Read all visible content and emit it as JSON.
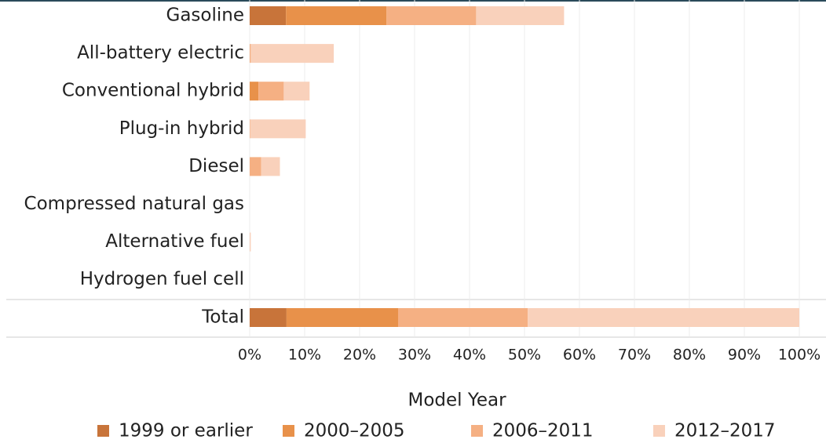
{
  "chart_data": {
    "type": "bar",
    "orientation": "horizontal",
    "stacked": true,
    "categories": [
      "Gasoline",
      "All-battery electric",
      "Conventional hybrid",
      "Plug-in hybrid",
      "Diesel",
      "Compressed natural gas",
      "Alternative fuel",
      "Hydrogen fuel cell",
      "Total"
    ],
    "series": [
      {
        "name": "1999 or earlier",
        "color": "#c8743a",
        "values": [
          6.6,
          0,
          0,
          0,
          0,
          0,
          0,
          0,
          6.7
        ]
      },
      {
        "name": "2000–2005",
        "color": "#e8914a",
        "values": [
          18.3,
          0,
          1.6,
          0,
          0,
          0,
          0,
          0,
          20.3
        ]
      },
      {
        "name": "2006–2011",
        "color": "#f5b083",
        "values": [
          16.3,
          0.2,
          4.6,
          0.1,
          2.1,
          0,
          0,
          0,
          23.6
        ]
      },
      {
        "name": "2012–2017",
        "color": "#f9d1bb",
        "values": [
          16.0,
          15.1,
          4.7,
          10.1,
          3.4,
          0,
          0.2,
          0,
          49.4
        ]
      }
    ],
    "xlim": [
      0,
      100
    ],
    "xticks": [
      {
        "value": 0,
        "label": "0%"
      },
      {
        "value": 10,
        "label": "10%"
      },
      {
        "value": 20,
        "label": "20%"
      },
      {
        "value": 30,
        "label": "30%"
      },
      {
        "value": 40,
        "label": "40%"
      },
      {
        "value": 50,
        "label": "50%"
      },
      {
        "value": 60,
        "label": "60%"
      },
      {
        "value": 70,
        "label": "70%"
      },
      {
        "value": 80,
        "label": "80%"
      },
      {
        "value": 90,
        "label": "90%"
      },
      {
        "value": 100,
        "label": "100%"
      }
    ],
    "grid": true,
    "legend_title": "Model Year",
    "legend": "bottom"
  }
}
